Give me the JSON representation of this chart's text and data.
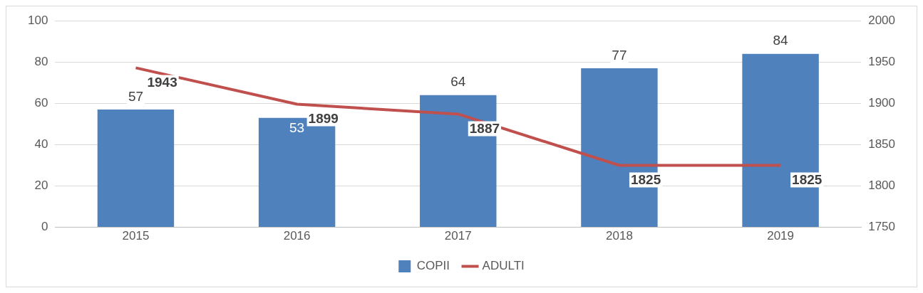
{
  "chart_data": {
    "type": "bar",
    "categories": [
      "2015",
      "2016",
      "2017",
      "2018",
      "2019"
    ],
    "series": [
      {
        "name": "COPII",
        "color": "#4f81bd",
        "values": [
          57,
          53,
          64,
          77,
          84
        ]
      },
      {
        "name": "ADULTI",
        "type": "line",
        "axis": "y2",
        "color": "#c0504d",
        "values": [
          1943,
          1899,
          1887,
          1825,
          1825
        ]
      }
    ],
    "ylim": [
      0,
      100
    ],
    "yticks": [
      0,
      20,
      40,
      60,
      80,
      100
    ],
    "y2lim": [
      1750,
      2000
    ],
    "y2ticks": [
      1750,
      1800,
      1850,
      1900,
      1950,
      2000
    ],
    "grid": "y",
    "legend": "bottom",
    "data_labels": true,
    "marker": "none"
  }
}
